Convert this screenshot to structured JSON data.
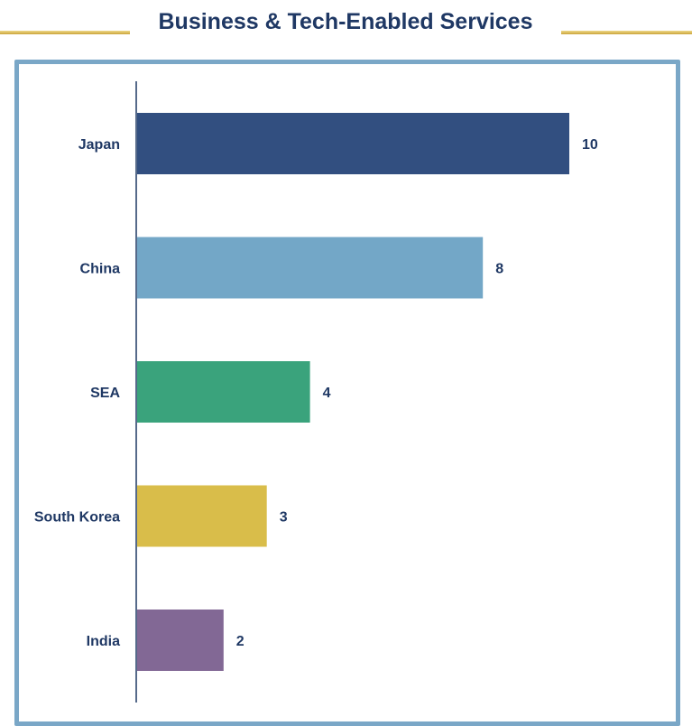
{
  "header": {
    "title": "Business & Tech-Enabled Services",
    "accent_color": "#c9a43a"
  },
  "chart_data": {
    "type": "bar",
    "orientation": "horizontal",
    "title": "Business & Tech-Enabled Services",
    "categories": [
      "Japan",
      "China",
      "SEA",
      "South Korea",
      "India"
    ],
    "values": [
      10,
      8,
      4,
      3,
      2
    ],
    "colors": [
      "#324f80",
      "#73a7c7",
      "#3aa37c",
      "#d9bd4a",
      "#826895"
    ],
    "xlim": [
      0,
      10
    ],
    "grid": false,
    "legend": "none",
    "data_labels": true
  }
}
